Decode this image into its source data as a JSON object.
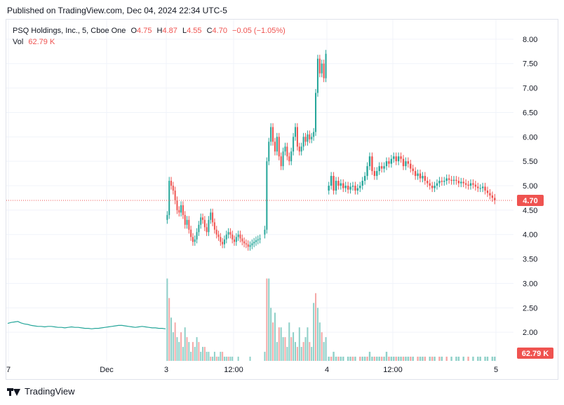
{
  "header": {
    "published": "Published on TradingView.com, Dec 04, 2024 22:34 UTC-5"
  },
  "legend": {
    "symbol": "PSQ Holdings, Inc., 5, Cboe One",
    "open_label": "O",
    "open": "4.75",
    "high_label": "H",
    "high": "4.87",
    "low_label": "L",
    "low": "4.55",
    "close_label": "C",
    "close": "4.70",
    "change": "−0.05 (−1.05%)",
    "vol_label": "Vol",
    "vol": "62.79 K"
  },
  "footer": {
    "brand": "TradingView",
    "logo_icon": "tradingview-logo-icon"
  },
  "colors": {
    "up": "#26a69a",
    "down": "#ef5350",
    "vol_up": "#8ed0c8",
    "vol_down": "#f5a8a6",
    "grid": "#f0f3fa",
    "axis_text": "#131722",
    "price_line": "#ef5350"
  },
  "chart_data": {
    "type": "candlestick",
    "interval": "5",
    "y_axis": {
      "ticks": [
        "8.00",
        "7.50",
        "7.00",
        "6.50",
        "6.00",
        "5.50",
        "5.00",
        "4.50",
        "4.00",
        "3.50",
        "3.00",
        "2.50",
        "2.00"
      ],
      "ylim": [
        1.4,
        8.4
      ]
    },
    "x_axis": {
      "ticks": [
        "7",
        "Dec",
        "3",
        "12:00",
        "4",
        "12:00",
        "5"
      ]
    },
    "last_price_label": "4.70",
    "last_volume_label": "62.79 K",
    "segments": [
      {
        "session": "Dec 3 (prior, compressed)",
        "type": "line",
        "values": [
          2.18,
          2.2,
          2.21,
          2.22,
          2.19,
          2.17,
          2.16,
          2.14,
          2.13,
          2.12,
          2.12,
          2.11,
          2.12,
          2.12,
          2.11,
          2.1,
          2.1,
          2.09,
          2.1,
          2.11,
          2.1,
          2.1,
          2.09,
          2.08,
          2.08,
          2.07,
          2.08,
          2.08,
          2.09,
          2.1,
          2.11,
          2.12,
          2.13,
          2.14,
          2.14,
          2.13,
          2.12,
          2.11,
          2.1,
          2.11,
          2.12,
          2.11,
          2.1,
          2.09,
          2.09,
          2.08,
          2.08,
          2.07
        ]
      },
      {
        "session": "Dec 3",
        "type": "candles",
        "closes": [
          4.4,
          5.1,
          5.0,
          4.9,
          4.7,
          4.5,
          4.45,
          4.6,
          4.4,
          4.2,
          4.3,
          4.1,
          3.95,
          3.85,
          3.9,
          4.05,
          4.2,
          4.35,
          4.3,
          4.15,
          4.05,
          4.3,
          4.45,
          4.25,
          4.1,
          4.0,
          3.95,
          3.85,
          3.8,
          3.9,
          4.0,
          4.05,
          4.0,
          3.9,
          3.85,
          3.95,
          4.0,
          3.92,
          3.86,
          3.82,
          3.8,
          3.75,
          3.78,
          3.82,
          3.85,
          3.88,
          3.9,
          3.92
        ]
      },
      {
        "session": "Dec 3 PM",
        "type": "candles",
        "closes": [
          4.1,
          5.5,
          5.9,
          6.2,
          5.9,
          5.7,
          6.0,
          5.6,
          5.4,
          5.7,
          5.8,
          5.6,
          5.5,
          5.7,
          6.0,
          6.2,
          5.8,
          5.7,
          5.8,
          6.0,
          5.9,
          6.05,
          5.95,
          6.0,
          6.1,
          6.9,
          7.6,
          7.3,
          7.5,
          7.2,
          7.7
        ]
      },
      {
        "session": "Dec 4",
        "type": "candles",
        "closes": [
          5.0,
          5.2,
          4.9,
          5.1,
          5.0,
          5.05,
          4.95,
          5.0,
          4.92,
          4.98,
          5.0,
          4.9,
          4.95,
          5.0,
          5.1,
          5.2,
          5.4,
          5.6,
          5.3,
          5.2,
          5.3,
          5.4,
          5.35,
          5.4,
          5.5,
          5.45,
          5.55,
          5.6,
          5.5,
          5.6,
          5.55,
          5.4,
          5.5,
          5.45,
          5.35,
          5.3,
          5.2,
          5.25,
          5.15,
          5.2,
          5.1,
          5.05,
          5.0,
          4.95,
          5.0,
          5.05,
          5.1,
          5.08,
          5.1,
          5.15,
          5.12,
          5.1,
          5.12,
          5.1,
          5.05,
          5.08,
          5.05,
          5.02,
          5.0,
          5.05,
          5.02,
          4.98,
          4.95,
          4.95,
          4.98,
          4.9,
          4.85,
          4.8,
          4.75,
          4.7
        ]
      }
    ],
    "volume": {
      "prior": [
        1.3,
        1.2,
        1.2,
        1.2,
        1.3,
        1.2,
        1.2,
        1.2
      ],
      "dec3": [
        3.1,
        2.7,
        2.3,
        2.0,
        2.2,
        1.9,
        1.8,
        2.0,
        1.7,
        2.1,
        1.9,
        1.8,
        1.6,
        1.8,
        1.7,
        1.9,
        1.8,
        1.6,
        1.7,
        1.7,
        1.6,
        1.6,
        1.5,
        1.5,
        1.6,
        1.5,
        1.5,
        1.6,
        1.6,
        1.5,
        1.5,
        1.5,
        1.5,
        1.5,
        1.4,
        1.4,
        1.5,
        1.4,
        1.4,
        1.4,
        1.4,
        1.4,
        1.5,
        1.4,
        1.4,
        1.4,
        1.4,
        1.4
      ],
      "dec3pm": [
        1.6,
        3.1,
        3.1,
        2.5,
        2.2,
        2.4,
        1.8,
        2.1,
        2.1,
        1.9,
        1.9,
        1.7,
        2.2,
        1.9,
        2.0,
        1.8,
        1.7,
        2.1,
        1.7,
        1.8,
        1.9,
        2.1,
        1.8,
        1.7,
        2.6,
        2.8,
        2.5,
        2.2,
        2.0,
        1.8,
        1.9
      ],
      "dec4": [
        1.5,
        1.5,
        1.6,
        1.5,
        1.5,
        1.5,
        1.5,
        1.4,
        1.5,
        1.5,
        1.5,
        1.5,
        1.4,
        1.5,
        1.5,
        1.5,
        1.5,
        1.6,
        1.5,
        1.5,
        1.5,
        1.5,
        1.5,
        1.5,
        1.6,
        1.5,
        1.5,
        1.5,
        1.5,
        1.5,
        1.5,
        1.5,
        1.5,
        1.5,
        1.5,
        1.5,
        1.4,
        1.5,
        1.5,
        1.5,
        1.5,
        1.4,
        1.5,
        1.5,
        1.5,
        1.4,
        1.5,
        1.5,
        1.4,
        1.5,
        1.4,
        1.5,
        1.4,
        1.5,
        1.5,
        1.4,
        1.5,
        1.4,
        1.5,
        1.4,
        1.5,
        1.4,
        1.5,
        1.5,
        1.4,
        1.5,
        1.5,
        1.4,
        1.5,
        1.5
      ]
    }
  }
}
